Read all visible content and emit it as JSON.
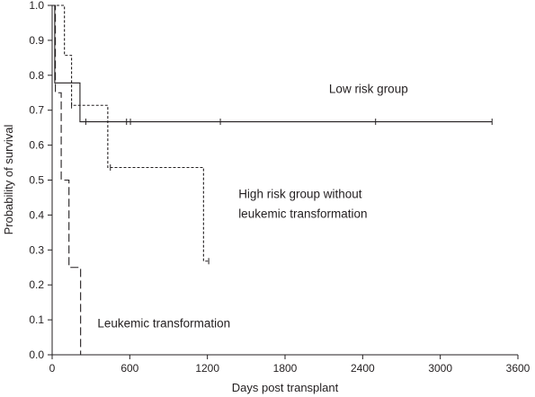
{
  "chart_data": {
    "type": "line",
    "subtype": "kaplan-meier",
    "title": "",
    "xlabel": "Days post transplant",
    "ylabel": "Probability of survival",
    "xlim": [
      0,
      3600
    ],
    "ylim": [
      0,
      1.0
    ],
    "xticks": [
      0,
      600,
      1200,
      1800,
      2400,
      3000,
      3600
    ],
    "yticks": [
      "0.0",
      "0.1",
      "0.2",
      "0.3",
      "0.4",
      "0.5",
      "0.6",
      "0.7",
      "0.8",
      "0.9",
      "1.0"
    ],
    "grid": false,
    "legend": "none",
    "series": [
      {
        "name": "Low risk group",
        "style": "solid",
        "steps": [
          [
            0,
            1.0
          ],
          [
            20,
            0.778
          ],
          [
            215,
            0.667
          ],
          [
            3400,
            0.667
          ]
        ],
        "censored": [
          [
            260,
            0.667
          ],
          [
            575,
            0.667
          ],
          [
            605,
            0.667
          ],
          [
            1300,
            0.667
          ],
          [
            2500,
            0.667
          ],
          [
            3400,
            0.667
          ]
        ]
      },
      {
        "name": "High risk group without leukemic transformation",
        "style": "short-dash",
        "steps": [
          [
            0,
            1.0
          ],
          [
            95,
            0.857
          ],
          [
            150,
            0.714
          ],
          [
            430,
            0.536
          ],
          [
            1170,
            0.268
          ],
          [
            1210,
            0.268
          ]
        ],
        "censored": [
          [
            150,
            0.714
          ],
          [
            450,
            0.536
          ],
          [
            1210,
            0.268
          ]
        ]
      },
      {
        "name": "Leukemic transformation",
        "style": "long-dash",
        "steps": [
          [
            0,
            1.0
          ],
          [
            25,
            0.75
          ],
          [
            70,
            0.5
          ],
          [
            130,
            0.25
          ],
          [
            220,
            0.0
          ]
        ],
        "censored": []
      }
    ],
    "annotations": [
      {
        "text": "Low risk group",
        "x": 2140,
        "y": 0.75
      },
      {
        "text": "High risk group without",
        "x": 1440,
        "y": 0.448
      },
      {
        "text": "leukemic transformation",
        "x": 1440,
        "y": 0.392
      },
      {
        "text": "Leukemic transformation",
        "x": 350,
        "y": 0.078
      }
    ],
    "colors": {
      "line": "#231f20",
      "background": "#ffffff"
    }
  }
}
